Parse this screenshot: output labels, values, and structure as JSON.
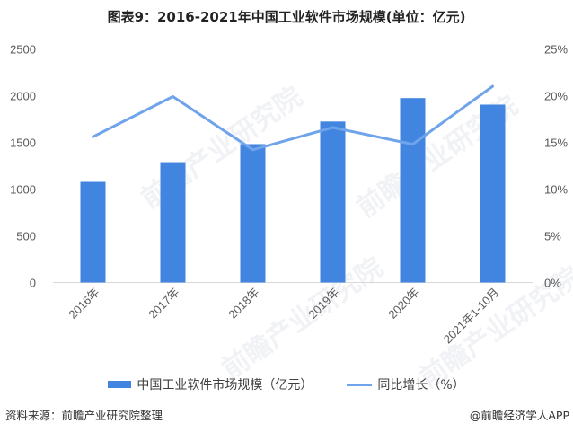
{
  "title": "图表9：2016-2021年中国工业软件市场规模(单位：亿元)",
  "chart_data": {
    "type": "bar",
    "title": "图表9：2016-2021年中国工业软件市场规模(单位：亿元)",
    "categories": [
      "2016年",
      "2017年",
      "2018年",
      "2019年",
      "2020年",
      "2021年1-10月"
    ],
    "series": [
      {
        "name": "中国工业软件市场规模（亿元）",
        "type": "bar",
        "axis": "left",
        "color": "#4285E0",
        "values": [
          1077,
          1288,
          1481,
          1723,
          1974,
          1904
        ]
      },
      {
        "name": "同比增长（%）",
        "type": "line",
        "axis": "right",
        "color": "#6FA3EA",
        "values": [
          15.6,
          19.9,
          14.2,
          16.6,
          14.8,
          21.0
        ]
      }
    ],
    "xlabel": "",
    "ylabel": "",
    "ylim": [
      0,
      2500
    ],
    "y_ticks": [
      "0",
      "500",
      "1000",
      "1500",
      "2000",
      "2500"
    ],
    "y2lim": [
      0,
      25
    ],
    "y2_ticks": [
      "0%",
      "5%",
      "10%",
      "15%",
      "20%",
      "25%"
    ],
    "grid": false,
    "legend_position": "bottom"
  },
  "legend": {
    "bar_label": "中国工业软件市场规模（亿元）",
    "line_label": "同比增长（%）"
  },
  "footer": {
    "source": "资料来源：前瞻产业研究院整理",
    "credit": "@前瞻经济学人APP"
  },
  "watermark": "前瞻产业研究院"
}
